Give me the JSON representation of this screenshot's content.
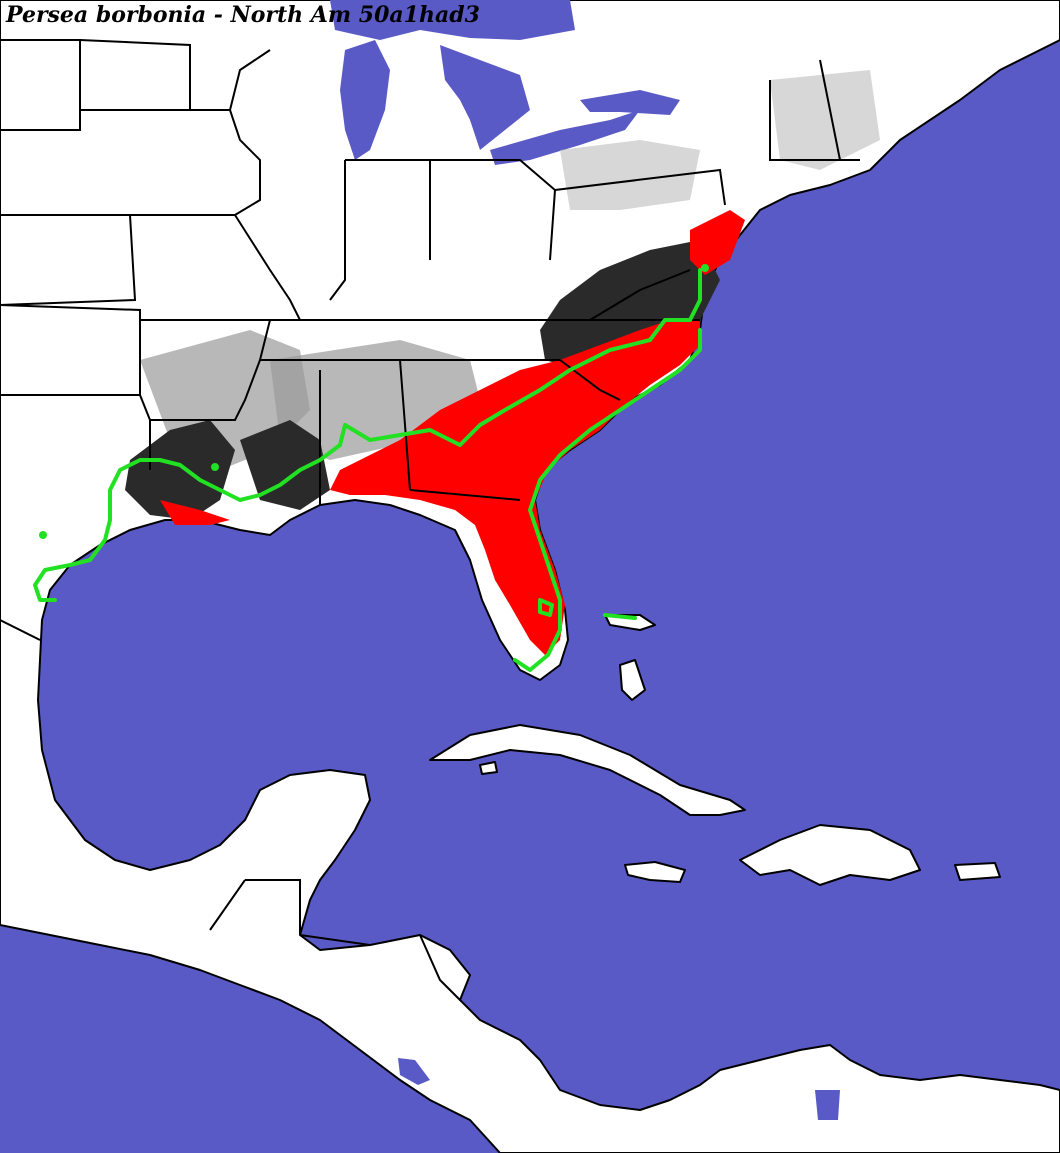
{
  "title": "Persea borbonia - North Am 50a1had3",
  "colors": {
    "ocean": "#5a5ac6",
    "land": "#ffffff",
    "border": "#000000",
    "predicted_high": "#ff0000",
    "predicted_low": "#2a2a2a",
    "elevation_gray": "#9a9a9a",
    "range_outline": "#22e022"
  }
}
